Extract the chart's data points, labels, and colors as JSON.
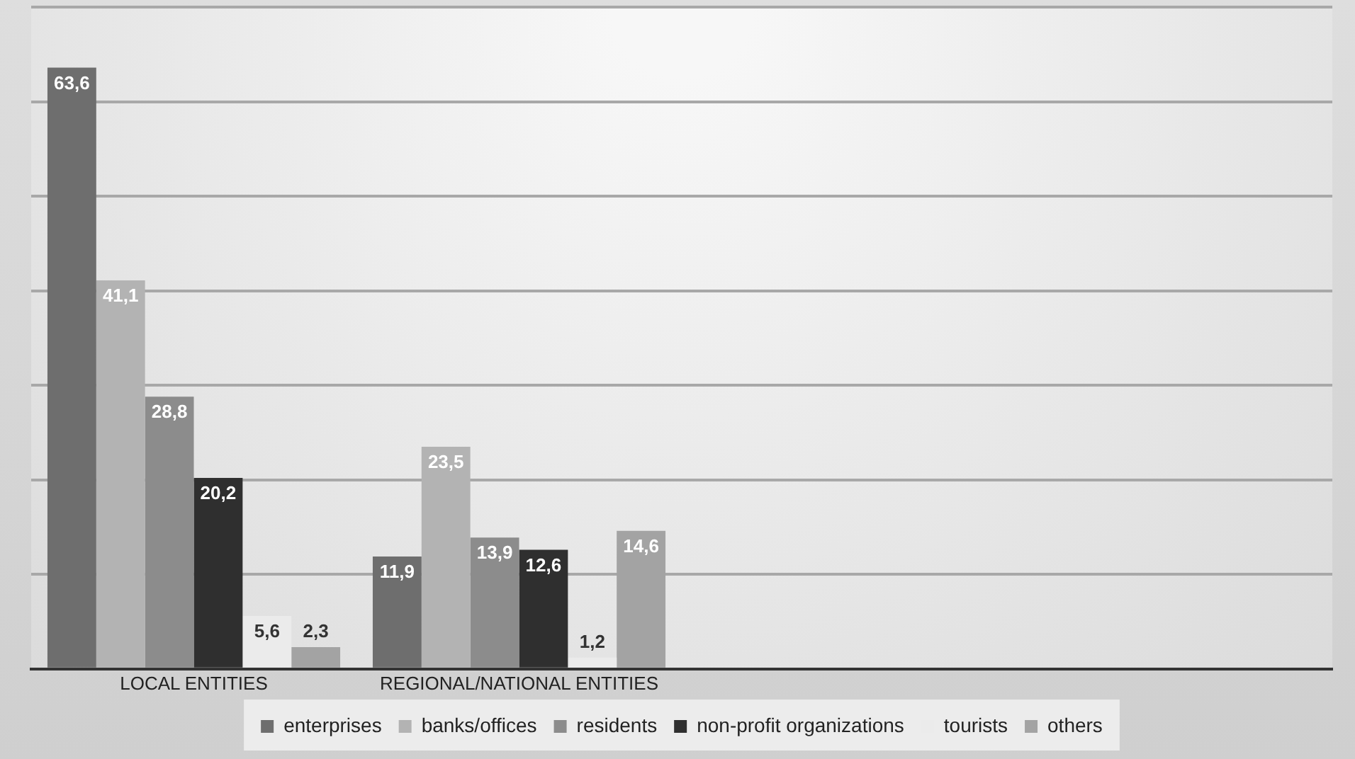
{
  "chart_data": {
    "type": "bar",
    "categories": [
      "LOCAL ENTITIES",
      "REGIONAL/NATIONAL ENTITIES",
      null,
      null
    ],
    "series": [
      {
        "name": "enterprises",
        "color": "#6e6e6e",
        "values": [
          63.6,
          11.9,
          null,
          null
        ],
        "value_labels": [
          "63,6",
          "11,9",
          null,
          null
        ]
      },
      {
        "name": "banks/offices",
        "color": "#b3b3b3",
        "values": [
          41.1,
          23.5,
          null,
          null
        ],
        "value_labels": [
          "41,1",
          "23,5",
          null,
          null
        ]
      },
      {
        "name": "residents",
        "color": "#8c8c8c",
        "values": [
          28.8,
          13.9,
          null,
          null
        ],
        "value_labels": [
          "28,8",
          "13,9",
          null,
          null
        ]
      },
      {
        "name": "non-profit organizations",
        "color": "#2f2f2f",
        "values": [
          20.2,
          12.6,
          null,
          null
        ],
        "value_labels": [
          "20,2",
          "12,6",
          null,
          null
        ]
      },
      {
        "name": "tourists",
        "color": "#ebebeb",
        "values": [
          5.6,
          1.2,
          null,
          null
        ],
        "value_labels": [
          "5,6",
          "1,2",
          null,
          null
        ]
      },
      {
        "name": "others",
        "color": "#a3a3a3",
        "values": [
          2.3,
          14.6,
          null,
          null
        ],
        "value_labels": [
          "2,3",
          "14,6",
          null,
          null
        ]
      }
    ],
    "tick_labels": "x",
    "grid": "y",
    "legend": "bottom"
  }
}
